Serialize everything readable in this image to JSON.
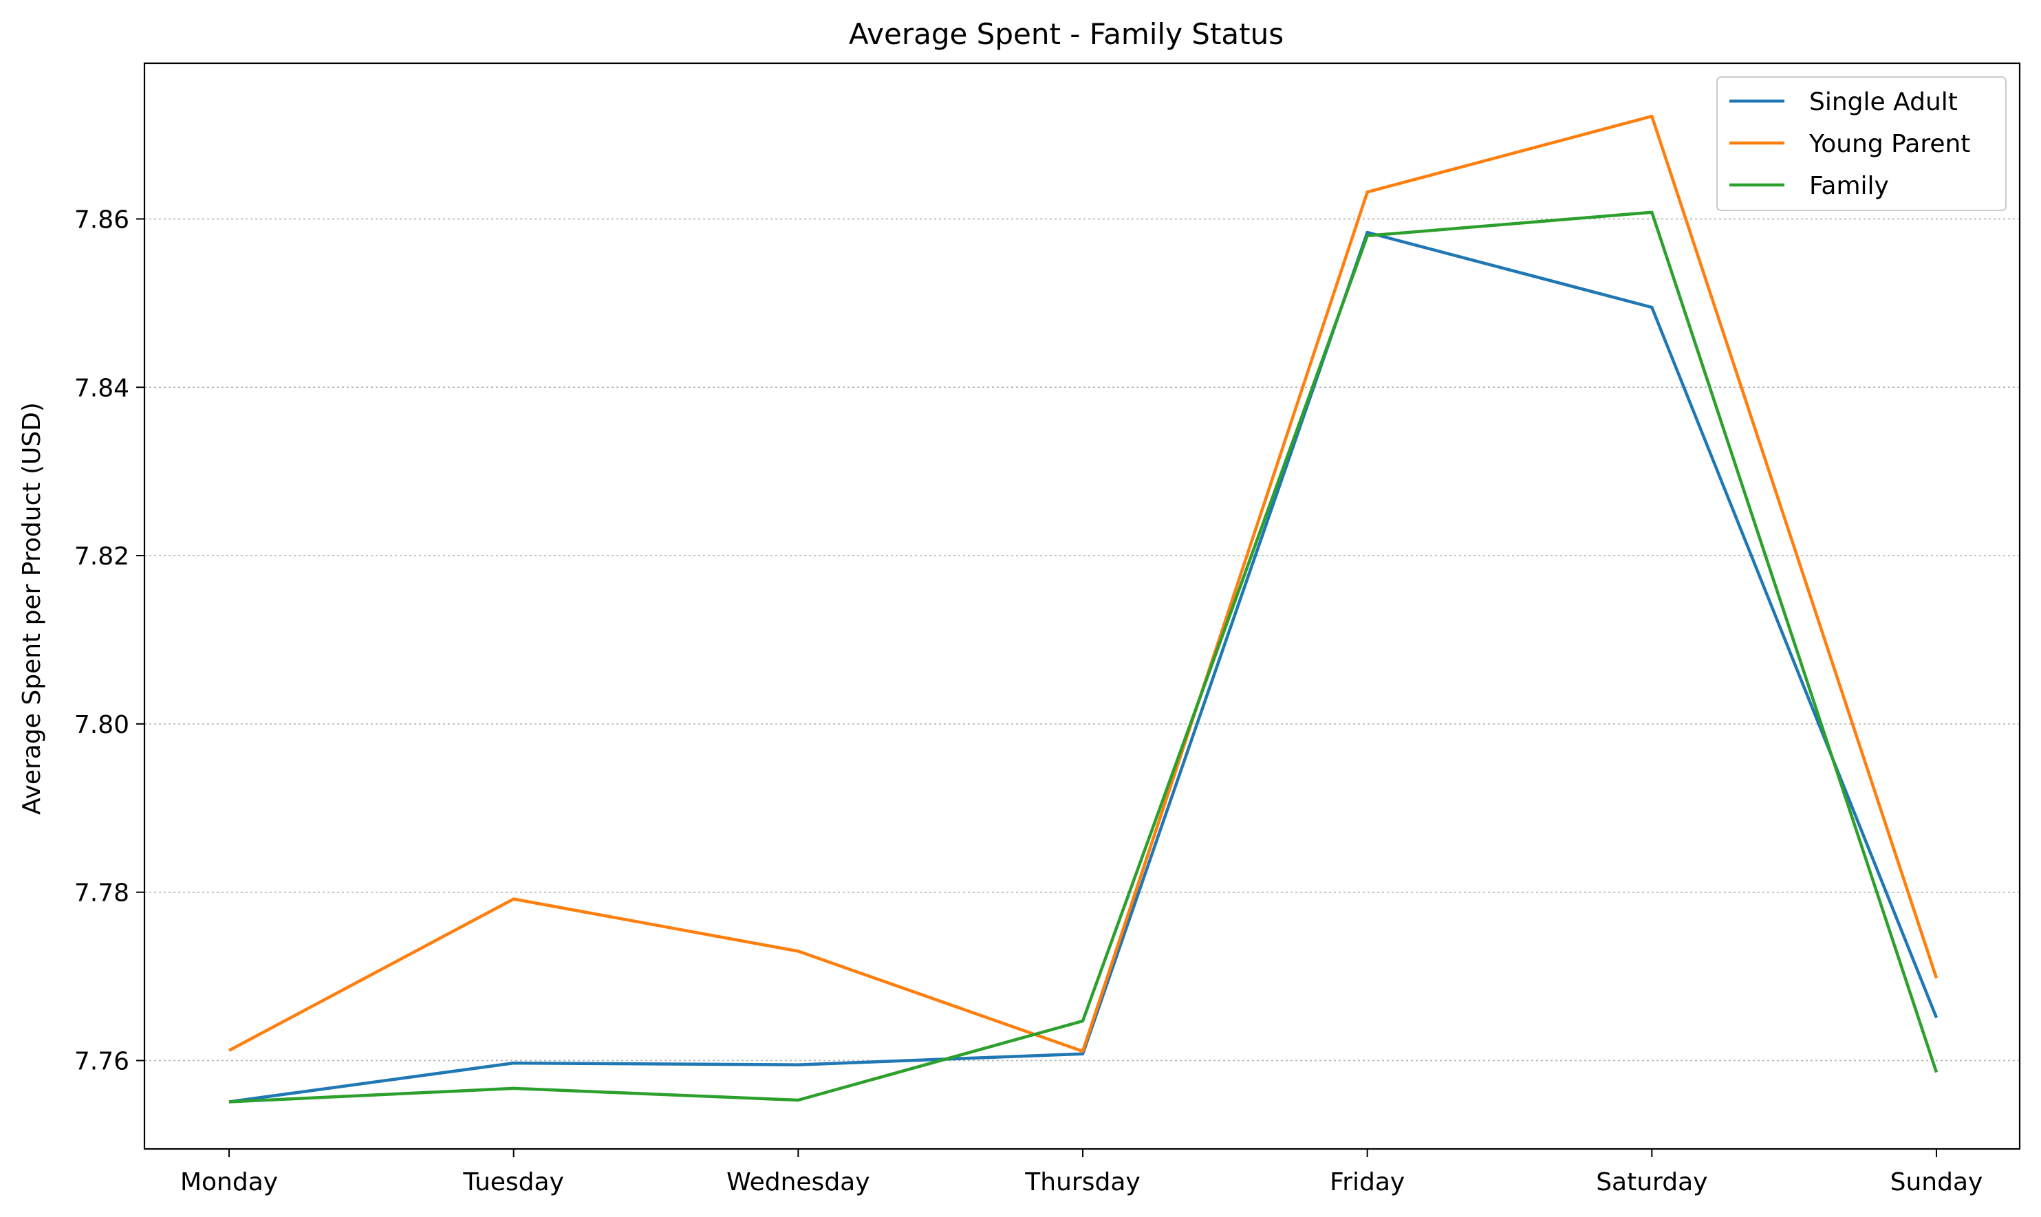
{
  "chart_data": {
    "type": "line",
    "title": "Average Spent - Family Status",
    "xlabel": "",
    "ylabel": "Average Spent per Product (USD)",
    "categories": [
      "Monday",
      "Tuesday",
      "Wednesday",
      "Thursday",
      "Friday",
      "Saturday",
      "Sunday"
    ],
    "ylim": [
      7.7495,
      7.8785
    ],
    "yticks": [
      7.76,
      7.78,
      7.8,
      7.82,
      7.84,
      7.86
    ],
    "ytick_labels": [
      "7.76",
      "7.78",
      "7.80",
      "7.82",
      "7.84",
      "7.86"
    ],
    "grid": "horizontal-dotted",
    "legend_position": "top-right",
    "series": [
      {
        "name": "Single Adult",
        "color": "#1f77b4",
        "values": [
          7.7551,
          7.7597,
          7.7595,
          7.7608,
          7.8584,
          7.8495,
          7.7651
        ]
      },
      {
        "name": "Young Parent",
        "color": "#ff7f0e",
        "values": [
          7.7612,
          7.7792,
          7.773,
          7.7611,
          7.8632,
          7.8722,
          7.7698
        ]
      },
      {
        "name": "Family",
        "color": "#2ca02c",
        "values": [
          7.7551,
          7.7567,
          7.7553,
          7.7647,
          7.858,
          7.8608,
          7.7586
        ]
      }
    ]
  }
}
